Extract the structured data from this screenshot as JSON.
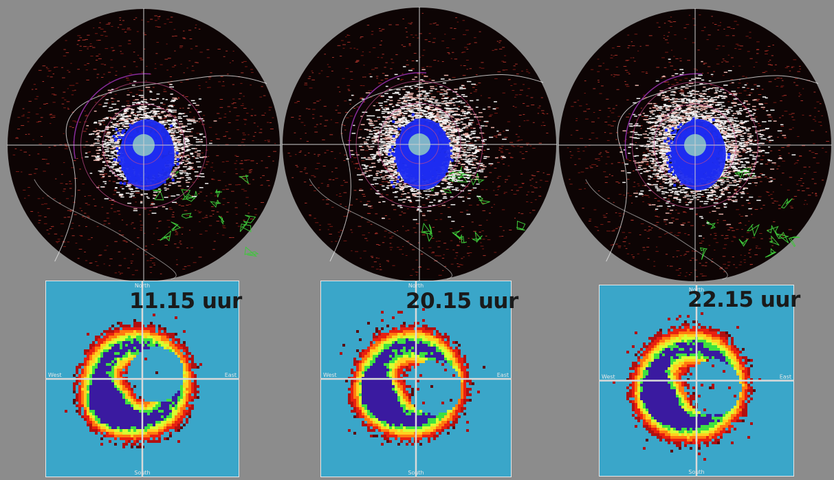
{
  "panels": [
    {
      "time_label": "11.15 uur",
      "compass": {
        "north": "North",
        "east": "East",
        "south": "South",
        "west": "West"
      }
    },
    {
      "time_label": "20.15 uur",
      "compass": {
        "north": "North",
        "east": "East",
        "south": "South",
        "west": "West"
      }
    },
    {
      "time_label": "22.15 uur",
      "compass": {
        "north": "North",
        "east": "East",
        "south": "South",
        "west": "West"
      }
    }
  ],
  "colors": {
    "background": "#8c8c8c",
    "radar_disc": "#0d0404",
    "echo_blue": "#1e2cf0",
    "histogram_bg": "#3aa6c9",
    "crosshair": "#d9d9d9"
  }
}
